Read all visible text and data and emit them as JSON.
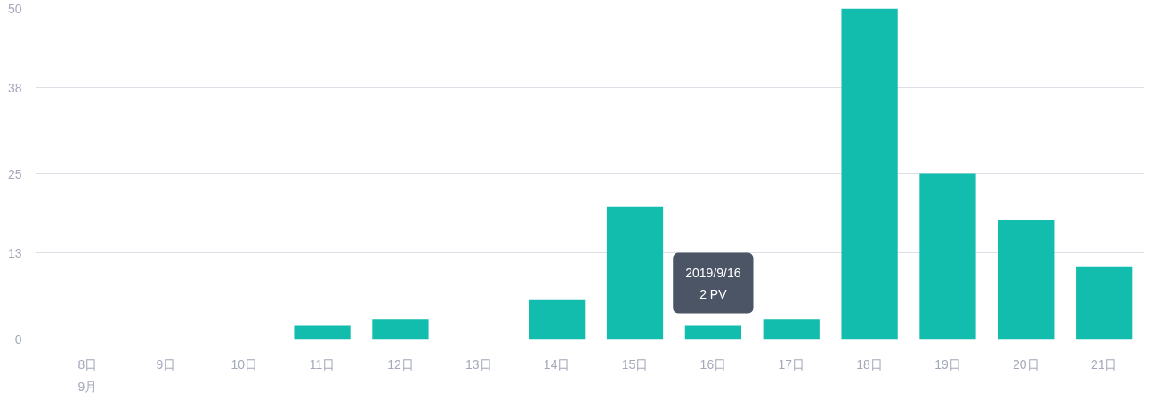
{
  "chart_data": {
    "type": "bar",
    "categories": [
      "8日\n9月",
      "9日",
      "10日",
      "11日",
      "12日",
      "13日",
      "14日",
      "15日",
      "16日",
      "17日",
      "18日",
      "19日",
      "20日",
      "21日"
    ],
    "values": [
      0,
      0,
      0,
      2,
      3,
      0,
      6,
      20,
      2,
      3,
      50,
      25,
      18,
      11
    ],
    "color": "#12bdae",
    "ylim": [
      0,
      50
    ],
    "yticks": [
      0,
      13,
      25,
      38,
      50
    ],
    "grid": "y",
    "annotations": [
      {
        "text": "2019/9/16\n2 PV",
        "x": "16日",
        "y": 2
      }
    ]
  }
}
